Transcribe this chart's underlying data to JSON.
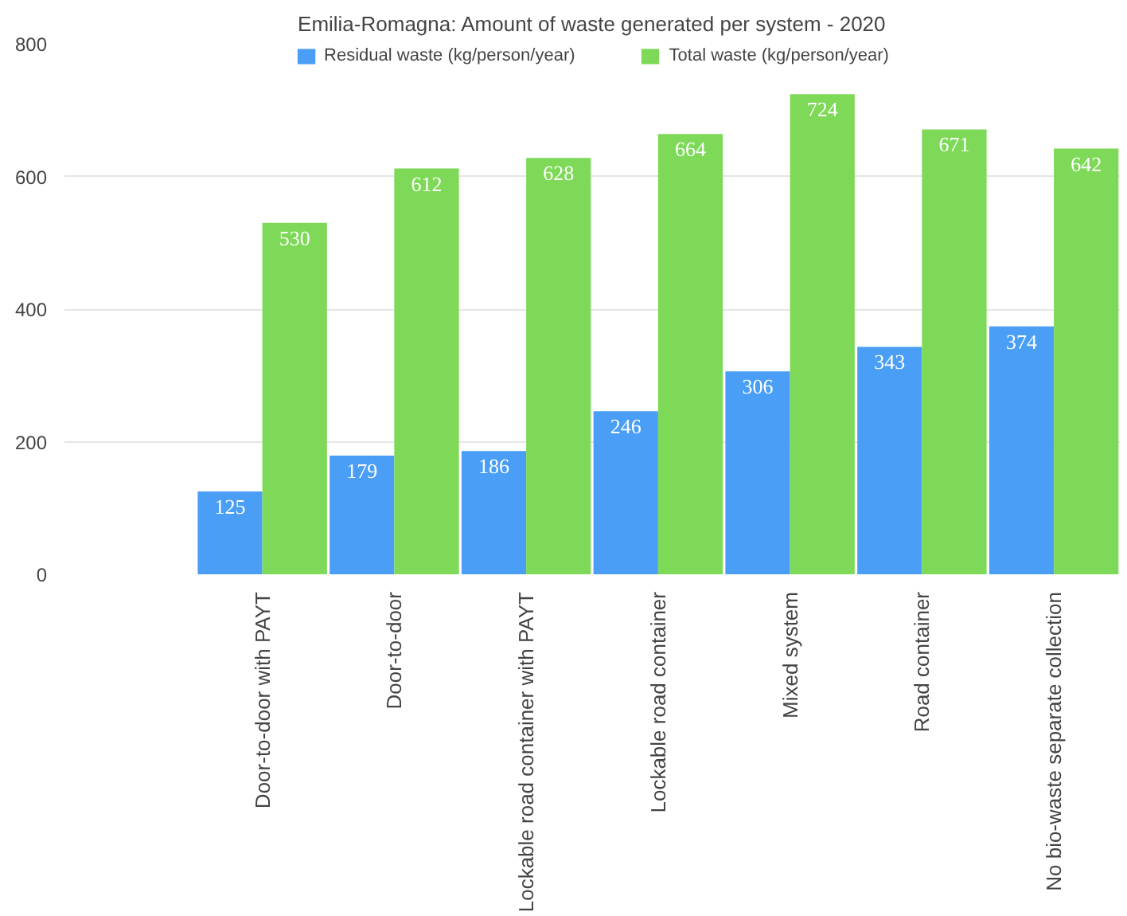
{
  "chart_data": {
    "type": "bar",
    "title": "Emilia-Romagna: Amount of waste generated per system - 2020",
    "categories": [
      null,
      "Door-to-door with PAYT",
      "Door-to-door",
      "Lockable road container with PAYT",
      "Lockable road container",
      "Mixed system",
      "Road container",
      "No bio-waste separate collection"
    ],
    "series": [
      {
        "name": "Residual waste (kg/person/year)",
        "color": "#4a9ef5",
        "values": [
          null,
          125,
          179,
          186,
          246,
          306,
          343,
          374
        ]
      },
      {
        "name": "Total waste (kg/person/year)",
        "color": "#7dd957",
        "values": [
          null,
          530,
          612,
          628,
          664,
          724,
          671,
          642
        ]
      }
    ],
    "ylim": [
      0,
      800
    ],
    "yticks": [
      0,
      200,
      400,
      600,
      800
    ],
    "grid": "y",
    "legend": "top",
    "data_labels": true
  }
}
